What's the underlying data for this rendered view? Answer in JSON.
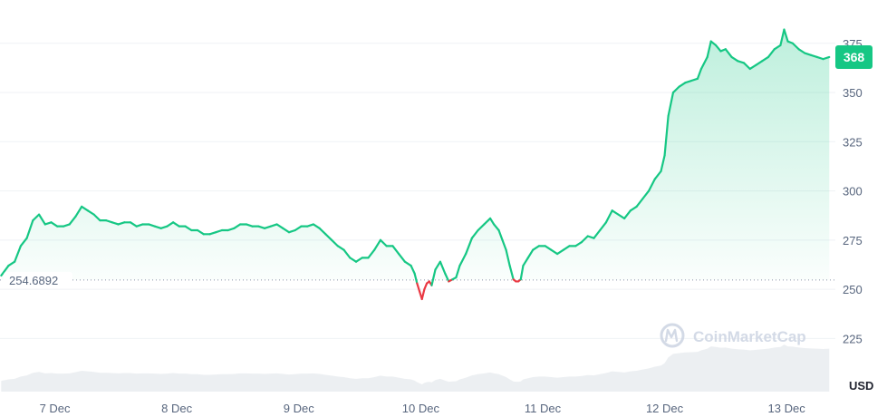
{
  "colors": {
    "up": "#16c784",
    "down": "#ea3943",
    "grid": "#eff2f5",
    "volume": "#e6e9ee",
    "text": "#58667e"
  },
  "current_price_label": "368",
  "reference_label": "254.6892",
  "currency": "USD",
  "watermark": "CoinMarketCap",
  "chart_data": {
    "type": "area",
    "x_tick_labels": [
      "7 Dec",
      "8 Dec",
      "9 Dec",
      "10 Dec",
      "11 Dec",
      "12 Dec",
      "13 Dec"
    ],
    "x_ticks": [
      7,
      8,
      9,
      10,
      11,
      12,
      13
    ],
    "xlim": [
      6.55,
      13.4
    ],
    "ylim": [
      198,
      397
    ],
    "y_ticks": [
      225,
      250,
      275,
      300,
      325,
      350,
      375
    ],
    "y_tick_labels": [
      "225",
      "250",
      "275",
      "300",
      "325",
      "350",
      "375"
    ],
    "reference_value": 254.6892,
    "current_value": 368,
    "grid": true,
    "series": [
      {
        "points": [
          [
            6.56,
            257
          ],
          [
            6.62,
            262
          ],
          [
            6.67,
            264
          ],
          [
            6.72,
            272
          ],
          [
            6.77,
            276
          ],
          [
            6.82,
            285
          ],
          [
            6.87,
            288
          ],
          [
            6.92,
            283
          ],
          [
            6.97,
            284
          ],
          [
            7.02,
            282
          ],
          [
            7.07,
            282
          ],
          [
            7.12,
            283
          ],
          [
            7.17,
            287
          ],
          [
            7.22,
            292
          ],
          [
            7.27,
            290
          ],
          [
            7.32,
            288
          ],
          [
            7.37,
            285
          ],
          [
            7.42,
            285
          ],
          [
            7.47,
            284
          ],
          [
            7.52,
            283
          ],
          [
            7.57,
            284
          ],
          [
            7.62,
            284
          ],
          [
            7.67,
            282
          ],
          [
            7.72,
            283
          ],
          [
            7.77,
            283
          ],
          [
            7.82,
            282
          ],
          [
            7.87,
            281
          ],
          [
            7.92,
            282
          ],
          [
            7.97,
            284
          ],
          [
            8.02,
            282
          ],
          [
            8.07,
            282
          ],
          [
            8.12,
            280
          ],
          [
            8.17,
            280
          ],
          [
            8.22,
            278
          ],
          [
            8.27,
            278
          ],
          [
            8.32,
            279
          ],
          [
            8.37,
            280
          ],
          [
            8.42,
            280
          ],
          [
            8.47,
            281
          ],
          [
            8.52,
            283
          ],
          [
            8.57,
            283
          ],
          [
            8.62,
            282
          ],
          [
            8.67,
            282
          ],
          [
            8.72,
            281
          ],
          [
            8.77,
            282
          ],
          [
            8.82,
            283
          ],
          [
            8.87,
            281
          ],
          [
            8.92,
            279
          ],
          [
            8.97,
            280
          ],
          [
            9.02,
            282
          ],
          [
            9.07,
            282
          ],
          [
            9.12,
            283
          ],
          [
            9.17,
            281
          ],
          [
            9.22,
            278
          ],
          [
            9.27,
            275
          ],
          [
            9.32,
            272
          ],
          [
            9.37,
            270
          ],
          [
            9.42,
            266
          ],
          [
            9.47,
            264
          ],
          [
            9.52,
            266
          ],
          [
            9.57,
            266
          ],
          [
            9.62,
            270
          ],
          [
            9.67,
            275
          ],
          [
            9.72,
            272
          ],
          [
            9.77,
            272
          ],
          [
            9.82,
            268
          ],
          [
            9.87,
            264
          ],
          [
            9.92,
            262
          ],
          [
            9.95,
            258
          ],
          [
            9.97,
            253
          ],
          [
            9.99,
            249
          ],
          [
            10.01,
            245
          ],
          [
            10.03,
            250
          ],
          [
            10.05,
            253
          ],
          [
            10.07,
            254
          ],
          [
            10.09,
            252
          ],
          [
            10.12,
            260
          ],
          [
            10.16,
            264
          ],
          [
            10.2,
            258
          ],
          [
            10.23,
            254
          ],
          [
            10.26,
            255
          ],
          [
            10.29,
            256
          ],
          [
            10.32,
            262
          ],
          [
            10.37,
            268
          ],
          [
            10.42,
            276
          ],
          [
            10.47,
            280
          ],
          [
            10.52,
            283
          ],
          [
            10.57,
            286
          ],
          [
            10.6,
            283
          ],
          [
            10.64,
            280
          ],
          [
            10.67,
            275
          ],
          [
            10.7,
            270
          ],
          [
            10.73,
            262
          ],
          [
            10.76,
            255
          ],
          [
            10.78,
            254
          ],
          [
            10.8,
            254
          ],
          [
            10.82,
            255
          ],
          [
            10.84,
            262
          ],
          [
            10.88,
            266
          ],
          [
            10.92,
            270
          ],
          [
            10.97,
            272
          ],
          [
            11.02,
            272
          ],
          [
            11.07,
            270
          ],
          [
            11.12,
            268
          ],
          [
            11.17,
            270
          ],
          [
            11.22,
            272
          ],
          [
            11.27,
            272
          ],
          [
            11.32,
            274
          ],
          [
            11.37,
            277
          ],
          [
            11.42,
            276
          ],
          [
            11.47,
            280
          ],
          [
            11.52,
            284
          ],
          [
            11.57,
            290
          ],
          [
            11.62,
            288
          ],
          [
            11.67,
            286
          ],
          [
            11.72,
            290
          ],
          [
            11.77,
            292
          ],
          [
            11.82,
            296
          ],
          [
            11.87,
            300
          ],
          [
            11.92,
            306
          ],
          [
            11.97,
            310
          ],
          [
            12.0,
            318
          ],
          [
            12.03,
            338
          ],
          [
            12.07,
            350
          ],
          [
            12.12,
            353
          ],
          [
            12.17,
            355
          ],
          [
            12.22,
            356
          ],
          [
            12.27,
            357
          ],
          [
            12.3,
            362
          ],
          [
            12.35,
            368
          ],
          [
            12.38,
            376
          ],
          [
            12.42,
            374
          ],
          [
            12.46,
            371
          ],
          [
            12.5,
            372
          ],
          [
            12.55,
            368
          ],
          [
            12.6,
            366
          ],
          [
            12.65,
            365
          ],
          [
            12.7,
            362
          ],
          [
            12.75,
            364
          ],
          [
            12.8,
            366
          ],
          [
            12.85,
            368
          ],
          [
            12.9,
            372
          ],
          [
            12.95,
            374
          ],
          [
            12.98,
            382
          ],
          [
            13.01,
            376
          ],
          [
            13.05,
            375
          ],
          [
            13.1,
            372
          ],
          [
            13.15,
            370
          ],
          [
            13.2,
            369
          ],
          [
            13.25,
            368
          ],
          [
            13.3,
            367
          ],
          [
            13.35,
            368
          ]
        ]
      }
    ]
  }
}
